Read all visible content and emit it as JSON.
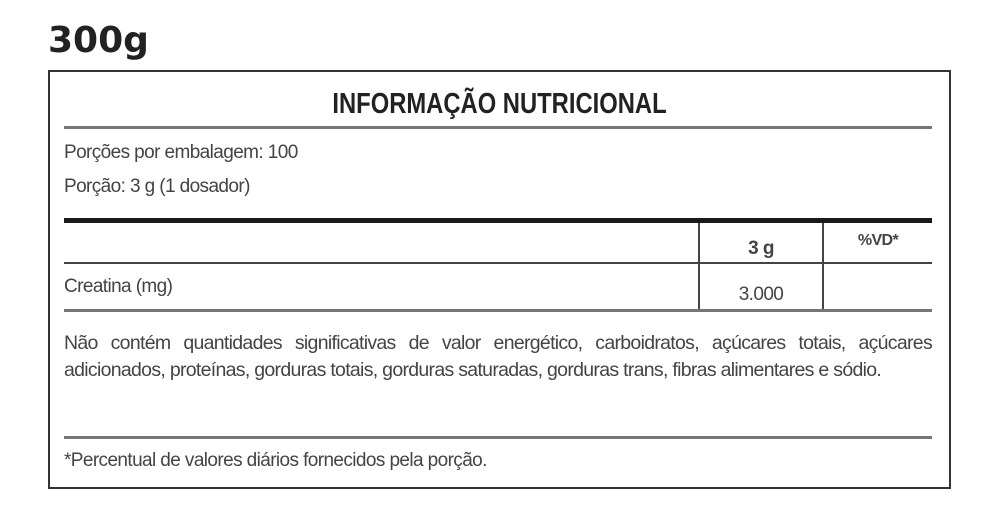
{
  "package_weight": "300g",
  "label": {
    "title": "INFORMAÇÃO NUTRICIONAL",
    "servings_per_package": "Porções por embalagem: 100",
    "serving_size": "Porção: 3 g (1 dosador)",
    "table": {
      "columns": [
        "",
        "3 g",
        "%VD*"
      ],
      "rows": [
        {
          "nutrient": "Creatina (mg)",
          "amount": "3.000",
          "dv": ""
        }
      ]
    },
    "note": "Não contém quantidades significativas de valor energético, carboidratos, açúcares totais, açúcares adicionados, proteínas, gorduras totais, gorduras saturadas, gorduras trans, fibras alimentares e sódio.",
    "footnote": "*Percentual de valores diários fornecidos pela porção."
  }
}
